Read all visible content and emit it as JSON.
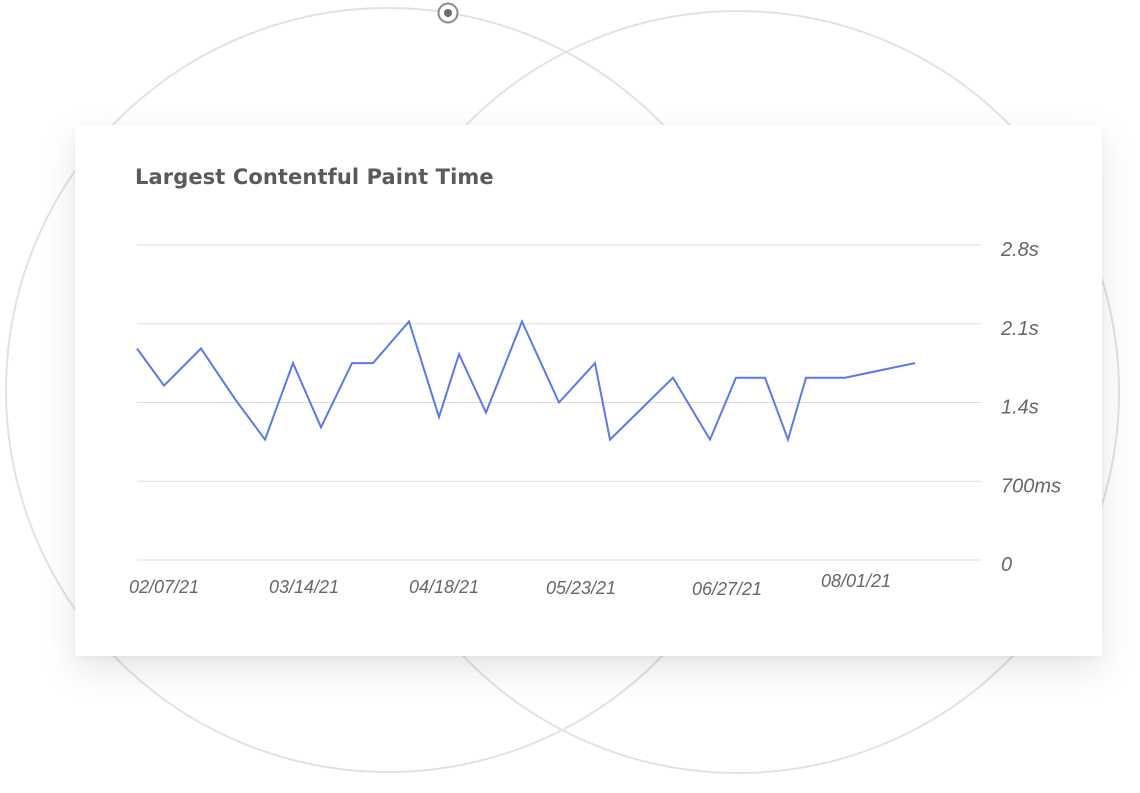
{
  "card": {
    "title": "Largest Contentful Paint Time"
  },
  "chart_data": {
    "type": "line",
    "title": "Largest Contentful Paint Time",
    "xlabel": "",
    "ylabel": "",
    "ylim_seconds": [
      0,
      2.8
    ],
    "y_ticks": [
      "2.8s",
      "2.1s",
      "1.4s",
      "700ms",
      "0"
    ],
    "y_tick_values_seconds": [
      2.8,
      2.1,
      1.4,
      0.7,
      0
    ],
    "x_tick_labels": [
      "02/07/21",
      "03/14/21",
      "04/18/21",
      "05/23/21",
      "06/27/21",
      "08/01/21"
    ],
    "grid": true,
    "line_color": "#5b79e8",
    "series": [
      {
        "values_seconds": [
          1.88,
          1.55,
          1.88,
          1.43,
          1.07,
          1.75,
          1.18,
          1.75,
          1.75,
          2.12,
          1.27,
          1.83,
          1.31,
          2.12,
          1.4,
          1.75,
          1.07,
          1.62,
          1.07,
          1.62,
          1.62,
          1.07,
          1.62,
          1.62,
          1.75
        ]
      }
    ]
  },
  "colors": {
    "title": "#5a5a5a",
    "grid": "#dddddd",
    "ticks": "#666666",
    "background_circles": "#e2e2e2"
  }
}
